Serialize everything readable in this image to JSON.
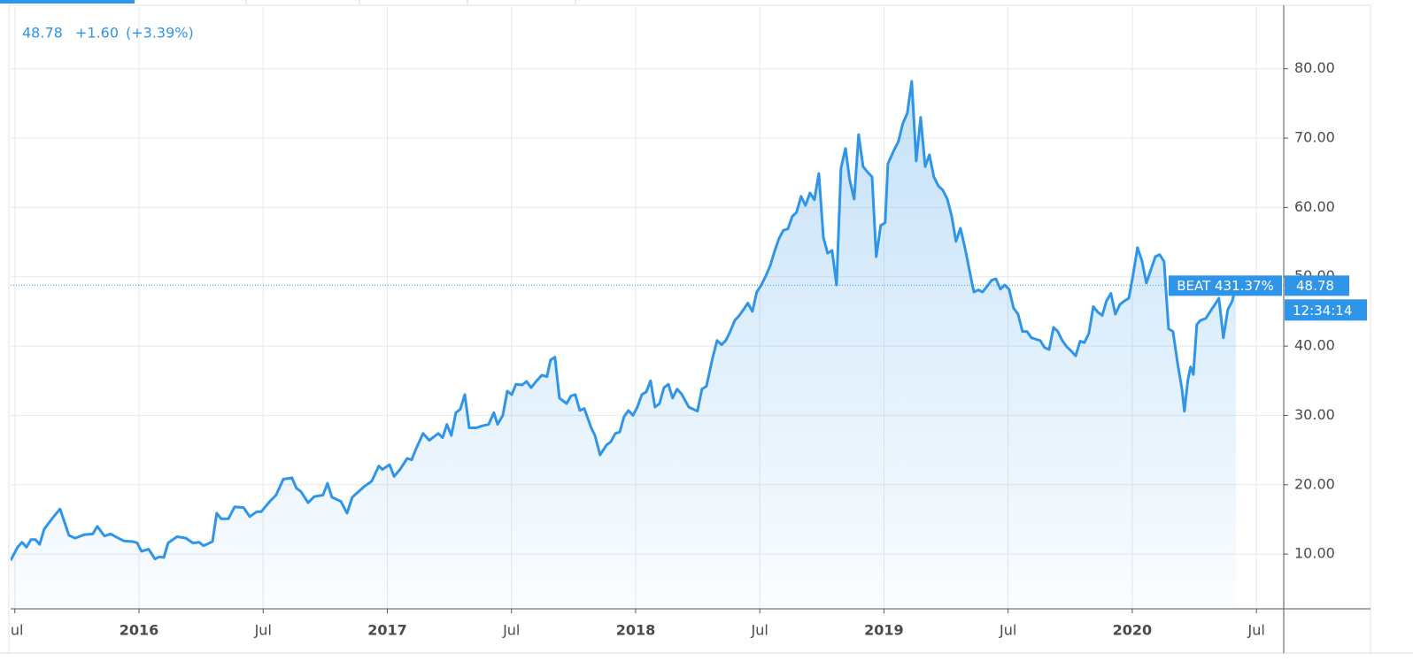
{
  "chart_data": {
    "type": "area",
    "header": {
      "price": "48.78",
      "change": "+1.60",
      "change_pct": "(+3.39%)"
    },
    "symbol_label": "BEAT 431.37%",
    "current_price": {
      "value": 48.78,
      "label": "48.78"
    },
    "countdown": "12:34:14",
    "color": "#2f95e8",
    "grid": true,
    "xlim": [
      2015.483,
      2020.61
    ],
    "ylim": [
      2.1,
      88.9
    ],
    "xticks": [
      {
        "value": 2015.5,
        "label": "Jul"
      },
      2016,
      {
        "value": 2016.5,
        "label": "Jul"
      },
      2017,
      {
        "value": 2017.5,
        "label": "Jul"
      },
      2018,
      {
        "value": 2018.5,
        "label": "Jul"
      },
      2019,
      {
        "value": 2019.5,
        "label": "Jul"
      },
      2020,
      {
        "value": 2020.5,
        "label": "Jul"
      }
    ],
    "yticks": [
      {
        "value": 10,
        "label": "10.00"
      },
      {
        "value": 20,
        "label": "20.00"
      },
      {
        "value": 30,
        "label": "30.00"
      },
      {
        "value": 40,
        "label": "40.00"
      },
      {
        "value": 50,
        "label": "50.00"
      },
      {
        "value": 60,
        "label": "60.00"
      },
      {
        "value": 70,
        "label": "70.00"
      },
      {
        "value": 80,
        "label": "80.00"
      }
    ],
    "x": [
      2015.483,
      2015.511,
      2015.529,
      2015.547,
      2015.565,
      2015.583,
      2015.6,
      2015.618,
      2015.654,
      2015.682,
      2015.7,
      2015.718,
      2015.743,
      2015.779,
      2015.814,
      2015.832,
      2015.861,
      2015.886,
      2015.911,
      2015.939,
      2015.975,
      2015.993,
      2016.01,
      2016.039,
      2016.064,
      2016.082,
      2016.1,
      2016.117,
      2016.153,
      2016.189,
      2016.217,
      2016.242,
      2016.26,
      2016.296,
      2016.313,
      2016.331,
      2016.36,
      2016.385,
      2016.421,
      2016.446,
      2016.474,
      2016.492,
      2016.527,
      2016.552,
      2016.581,
      2016.616,
      2016.634,
      2016.652,
      2016.681,
      2016.706,
      2016.741,
      2016.759,
      2016.777,
      2016.813,
      2016.838,
      2016.859,
      2016.884,
      2016.909,
      2016.937,
      2016.966,
      2016.98,
      2017.009,
      2017.027,
      2017.051,
      2017.08,
      2017.098,
      2017.116,
      2017.144,
      2017.169,
      2017.205,
      2017.223,
      2017.24,
      2017.258,
      2017.276,
      2017.294,
      2017.312,
      2017.33,
      2017.358,
      2017.383,
      2017.408,
      2017.429,
      2017.444,
      2017.465,
      2017.483,
      2017.501,
      2017.518,
      2017.543,
      2017.561,
      2017.579,
      2017.597,
      2017.622,
      2017.643,
      2017.657,
      2017.675,
      2017.693,
      2017.722,
      2017.739,
      2017.757,
      2017.775,
      2017.793,
      2017.821,
      2017.836,
      2017.857,
      2017.882,
      2017.9,
      2017.918,
      2017.936,
      2017.953,
      2017.971,
      2017.989,
      2018.007,
      2018.025,
      2018.043,
      2018.06,
      2018.078,
      2018.096,
      2018.114,
      2018.132,
      2018.149,
      2018.167,
      2018.185,
      2018.214,
      2018.249,
      2018.267,
      2018.285,
      2018.31,
      2018.328,
      2018.346,
      2018.363,
      2018.381,
      2018.399,
      2018.417,
      2018.435,
      2018.452,
      2018.47,
      2018.488,
      2018.506,
      2018.524,
      2018.542,
      2018.559,
      2018.577,
      2018.595,
      2018.613,
      2018.631,
      2018.648,
      2018.666,
      2018.684,
      2018.702,
      2018.72,
      2018.738,
      2018.756,
      2018.773,
      2018.791,
      2018.809,
      2018.827,
      2018.845,
      2018.862,
      2018.88,
      2018.898,
      2018.916,
      2018.934,
      2018.952,
      2018.969,
      2018.987,
      2019.005,
      2019.016,
      2019.041,
      2019.058,
      2019.076,
      2019.094,
      2019.112,
      2019.13,
      2019.148,
      2019.166,
      2019.183,
      2019.201,
      2019.219,
      2019.237,
      2019.255,
      2019.273,
      2019.29,
      2019.308,
      2019.326,
      2019.344,
      2019.362,
      2019.38,
      2019.397,
      2019.415,
      2019.433,
      2019.451,
      2019.469,
      2019.486,
      2019.504,
      2019.522,
      2019.54,
      2019.558,
      2019.576,
      2019.594,
      2019.611,
      2019.629,
      2019.647,
      2019.665,
      2019.683,
      2019.7,
      2019.718,
      2019.736,
      2019.754,
      2019.772,
      2019.79,
      2019.807,
      2019.825,
      2019.843,
      2019.861,
      2019.879,
      2019.896,
      2019.914,
      2019.932,
      2019.95,
      2019.968,
      2019.986,
      2020.004,
      2020.021,
      2020.039,
      2020.057,
      2020.075,
      2020.093,
      2020.11,
      2020.128,
      2020.146,
      2020.164,
      2020.182,
      2020.2,
      2020.21,
      2020.224,
      2020.235,
      2020.246,
      2020.26,
      2020.274,
      2020.296,
      2020.314,
      2020.331,
      2020.349,
      2020.367,
      2020.385,
      2020.403,
      2020.417
    ],
    "values": [
      9.1,
      11.0,
      11.7,
      11.0,
      12.1,
      12.1,
      11.4,
      13.6,
      15.3,
      16.5,
      14.6,
      12.7,
      12.3,
      12.8,
      12.9,
      14.0,
      12.6,
      12.9,
      12.4,
      11.9,
      11.8,
      11.6,
      10.4,
      10.7,
      9.3,
      9.6,
      9.5,
      11.6,
      12.5,
      12.3,
      11.6,
      11.7,
      11.2,
      11.8,
      15.9,
      15.1,
      15.1,
      16.8,
      16.7,
      15.4,
      16.1,
      16.1,
      17.6,
      18.5,
      20.8,
      21.0,
      19.5,
      19.0,
      17.4,
      18.3,
      18.5,
      20.2,
      18.2,
      17.6,
      15.9,
      18.2,
      19.0,
      19.8,
      20.5,
      22.7,
      22.2,
      22.9,
      21.2,
      22.2,
      23.8,
      23.6,
      25.2,
      27.4,
      26.4,
      27.4,
      26.8,
      28.7,
      27.1,
      30.4,
      30.9,
      33.0,
      28.2,
      28.2,
      28.5,
      28.7,
      30.4,
      28.7,
      30.0,
      33.5,
      33.0,
      34.5,
      34.4,
      34.9,
      34.0,
      34.8,
      35.8,
      35.6,
      38.0,
      38.4,
      32.5,
      31.7,
      32.8,
      33.0,
      30.7,
      31.0,
      28.2,
      27.1,
      24.3,
      25.7,
      26.2,
      27.4,
      27.6,
      29.8,
      30.7,
      30.0,
      31.2,
      33.0,
      33.4,
      35.0,
      31.2,
      31.7,
      34.0,
      34.5,
      32.5,
      33.8,
      33.1,
      31.2,
      30.6,
      33.8,
      34.2,
      38.3,
      40.8,
      40.2,
      40.8,
      42.1,
      43.7,
      44.4,
      45.3,
      46.2,
      45.0,
      47.8,
      48.8,
      50.1,
      51.6,
      53.6,
      55.5,
      56.7,
      56.9,
      58.7,
      59.3,
      61.6,
      60.3,
      62.1,
      61.1,
      64.9,
      55.7,
      53.4,
      53.8,
      48.8,
      65.7,
      68.5,
      64.0,
      61.2,
      70.5,
      65.9,
      65.1,
      64.4,
      52.9,
      57.4,
      57.8,
      66.3,
      68.3,
      69.5,
      72.1,
      73.6,
      78.2,
      66.7,
      73.0,
      65.9,
      67.6,
      64.4,
      63.1,
      62.5,
      61.2,
      58.7,
      55.1,
      57.0,
      54.2,
      51.0,
      47.8,
      48.1,
      47.8,
      48.6,
      49.5,
      49.7,
      48.2,
      48.8,
      48.2,
      45.5,
      44.6,
      42.1,
      42.1,
      41.2,
      41.0,
      40.8,
      39.8,
      39.5,
      42.7,
      42.1,
      40.8,
      39.9,
      39.3,
      38.6,
      40.7,
      40.5,
      41.8,
      45.7,
      44.9,
      44.4,
      46.5,
      47.6,
      44.6,
      46.0,
      46.5,
      46.9,
      50.4,
      54.2,
      52.3,
      49.1,
      51.0,
      52.9,
      53.2,
      52.2,
      42.5,
      42.1,
      37.6,
      33.8,
      30.6,
      35.1,
      37.0,
      35.9,
      43.1,
      43.7,
      44.0,
      45.0,
      45.9,
      46.9,
      41.2,
      45.3,
      46.5,
      48.78
    ]
  }
}
